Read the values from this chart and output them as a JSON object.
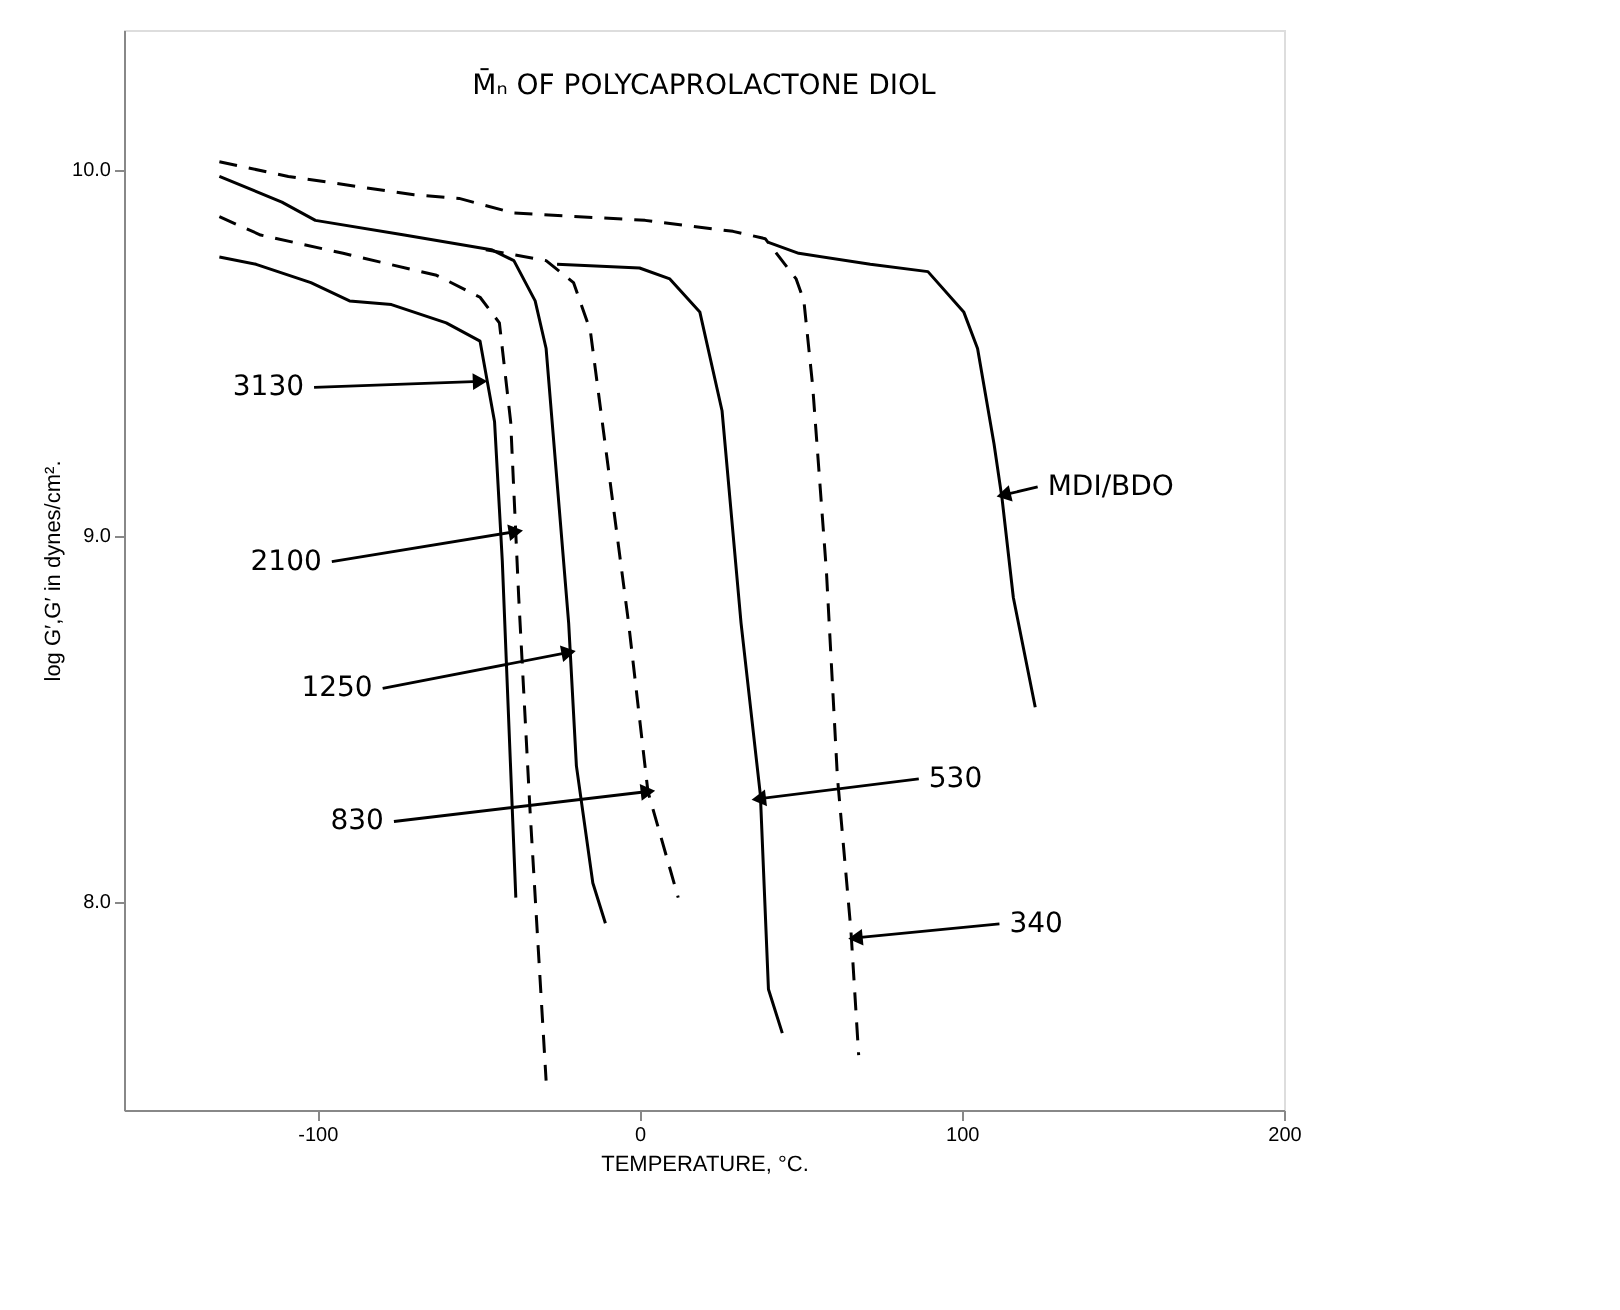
{
  "chart_data": {
    "type": "line",
    "title": "M̄ₙ OF POLYCAPROLACTONE DIOL",
    "xlabel": "TEMPERATURE, °C.",
    "ylabel": "log G′,G′ in dynes/cm².",
    "xlim": [
      -160,
      200
    ],
    "xticks": [
      -100,
      0,
      100,
      200
    ],
    "ylim": [
      7.43,
      10.38
    ],
    "yticks": [
      {
        "value": 8,
        "label": "8.0"
      },
      {
        "value": 9,
        "label": "9.0"
      },
      {
        "value": 10,
        "label": "10.0"
      }
    ],
    "grid": false,
    "series": [
      {
        "color": "#000000",
        "line_style": "solid",
        "x": [
          -130.4,
          -119,
          -102,
          -90,
          -77,
          -60,
          -49.5,
          -45,
          -42.6,
          -38.4
        ],
        "values": [
          9.76,
          9.74,
          9.69,
          9.64,
          9.63,
          9.58,
          9.53,
          9.31,
          8.93,
          8.01
        ]
      },
      {
        "color": "#000000",
        "line_style": "dashed",
        "x": [
          -130.4,
          -117.6,
          -92,
          -63,
          -49.5,
          -43.5,
          -40,
          -37.5,
          -34,
          -29
        ],
        "values": [
          9.87,
          9.82,
          9.77,
          9.71,
          9.65,
          9.58,
          9.31,
          8.83,
          8.25,
          7.51
        ]
      },
      {
        "color": "#000000",
        "line_style": "solid",
        "x": [
          -130.4,
          -111,
          -100.6,
          -73,
          -46,
          -39,
          -32.4,
          -29,
          -22,
          -19.6,
          -14.5,
          -10.6
        ],
        "values": [
          9.98,
          9.91,
          9.86,
          9.82,
          9.78,
          9.75,
          9.64,
          9.51,
          8.76,
          8.37,
          8.05,
          7.94
        ]
      },
      {
        "color": "#000000",
        "line_style": "dashed",
        "x": [
          -47.7,
          -29,
          -20.5,
          -15.3,
          -3.4,
          2.6,
          12
        ],
        "values": [
          9.78,
          9.75,
          9.69,
          9.56,
          8.76,
          8.3,
          8.01
        ]
      },
      {
        "color": "#000000",
        "line_style": "solid",
        "x": [
          -25.6,
          0,
          9.4,
          18.7,
          25.6,
          31.5,
          37.5,
          40,
          44.3
        ],
        "values": [
          9.74,
          9.73,
          9.7,
          9.61,
          9.34,
          8.76,
          8.29,
          7.76,
          7.64
        ]
      },
      {
        "color": "#000000",
        "line_style": "dashed",
        "x": [
          -130.4,
          -109,
          -70,
          -56,
          -39,
          1.7,
          29,
          39,
          48.6,
          51,
          53.7,
          58,
          61.4,
          65.6,
          68
        ],
        "values": [
          10.02,
          9.98,
          9.93,
          9.92,
          9.88,
          9.86,
          9.83,
          9.81,
          9.7,
          9.64,
          9.41,
          8.9,
          8.34,
          7.92,
          7.58
        ]
      },
      {
        "color": "#000000",
        "line_style": "solid",
        "x": [
          40,
          49.4,
          71.6,
          89.5,
          100.6,
          104.9,
          110,
          112.5,
          116,
          122.8
        ],
        "values": [
          9.8,
          9.77,
          9.74,
          9.72,
          9.61,
          9.51,
          9.25,
          9.1,
          8.83,
          8.53
        ]
      }
    ],
    "annotations": [
      {
        "text": "3130",
        "x": -49.5,
        "y": 9.42
      },
      {
        "text": "2100",
        "x": -38.4,
        "y": 9.01
      },
      {
        "text": "1250",
        "x": -22,
        "y": 8.68
      },
      {
        "text": "830",
        "x": 2.6,
        "y": 8.3
      },
      {
        "text": "530",
        "x": 37,
        "y": 8.28
      },
      {
        "text": "340",
        "x": 67,
        "y": 7.9
      },
      {
        "text": "MDI/BDO",
        "x": 113,
        "y": 9.11
      }
    ]
  }
}
